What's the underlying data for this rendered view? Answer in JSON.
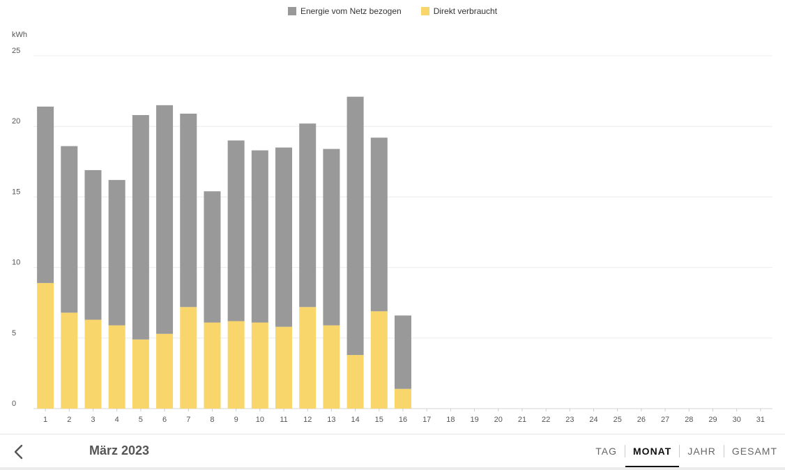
{
  "legend": [
    {
      "label": "Energie vom Netz bezogen",
      "color": "#999999"
    },
    {
      "label": "Direkt verbraucht",
      "color": "#f9d66b"
    }
  ],
  "chart_data": {
    "type": "bar",
    "stacked": true,
    "ylabel": "kWh",
    "ylim": [
      0,
      25
    ],
    "yticks": [
      0,
      5,
      10,
      15,
      20,
      25
    ],
    "grid": true,
    "legend_position": "top-center",
    "categories": [
      "1",
      "2",
      "3",
      "4",
      "5",
      "6",
      "7",
      "8",
      "9",
      "10",
      "11",
      "12",
      "13",
      "14",
      "15",
      "16",
      "17",
      "18",
      "19",
      "20",
      "21",
      "22",
      "23",
      "24",
      "25",
      "26",
      "27",
      "28",
      "29",
      "30",
      "31"
    ],
    "series": [
      {
        "name": "Direkt verbraucht",
        "color": "#f9d66b",
        "values": [
          8.9,
          6.8,
          6.3,
          5.9,
          4.9,
          5.3,
          7.2,
          6.1,
          6.2,
          6.1,
          5.8,
          7.2,
          5.9,
          3.8,
          6.9,
          1.4,
          0,
          0,
          0,
          0,
          0,
          0,
          0,
          0,
          0,
          0,
          0,
          0,
          0,
          0,
          0
        ]
      },
      {
        "name": "Energie vom Netz bezogen",
        "color": "#999999",
        "values": [
          12.5,
          11.8,
          10.6,
          10.3,
          15.9,
          16.2,
          13.7,
          9.3,
          12.8,
          12.2,
          12.7,
          13.0,
          12.5,
          18.3,
          12.3,
          5.2,
          0,
          0,
          0,
          0,
          0,
          0,
          0,
          0,
          0,
          0,
          0,
          0,
          0,
          0,
          0
        ]
      }
    ]
  },
  "footer": {
    "period": "März 2023",
    "back_icon": "chevron-left-icon",
    "tabs": [
      {
        "label": "TAG",
        "active": false
      },
      {
        "label": "MONAT",
        "active": true
      },
      {
        "label": "JAHR",
        "active": false
      },
      {
        "label": "GESAMT",
        "active": false
      }
    ]
  }
}
